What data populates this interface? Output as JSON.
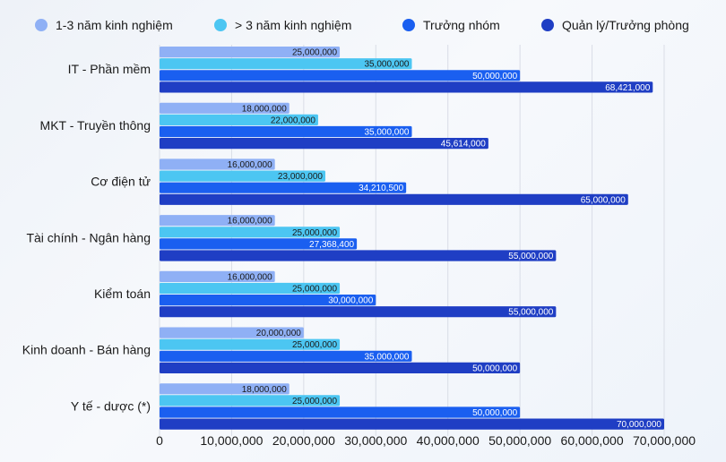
{
  "chart_data": {
    "type": "bar",
    "orientation": "horizontal",
    "categories": [
      "IT - Phần mềm",
      "MKT - Truyền thông",
      "Cơ điện tử",
      "Tài chính - Ngân hàng",
      "Kiểm toán",
      "Kinh doanh - Bán hàng",
      "Y tế - dược (*)"
    ],
    "series": [
      {
        "name": "1-3 năm kinh nghiệm",
        "color": "#8fb0f5",
        "values": [
          25000000,
          18000000,
          16000000,
          16000000,
          16000000,
          20000000,
          18000000
        ],
        "labels": [
          "25,000,000",
          "18,000,000",
          "16,000,000",
          "16,000,000",
          "16,000,000",
          "20,000,000",
          "18,000,000"
        ]
      },
      {
        "name": "> 3 năm kinh nghiệm",
        "color": "#4cc6f2",
        "values": [
          35000000,
          22000000,
          23000000,
          25000000,
          25000000,
          25000000,
          25000000
        ],
        "labels": [
          "35,000,000",
          "22,000,000",
          "23,000,000",
          "25,000,000",
          "25,000,000",
          "25,000,000",
          "25,000,000"
        ]
      },
      {
        "name": "Trưởng nhóm",
        "color": "#1a5ff0",
        "values": [
          50000000,
          35000000,
          34210500,
          27368400,
          30000000,
          35000000,
          50000000
        ],
        "labels": [
          "50,000,000",
          "35,000,000",
          "34,210,500",
          "27,368,400",
          "30,000,000",
          "35,000,000",
          "50,000,000"
        ]
      },
      {
        "name": "Quản lý/Trưởng phòng",
        "color": "#1f3ec4",
        "values": [
          68421000,
          45614000,
          65000000,
          55000000,
          55000000,
          50000000,
          70000000
        ],
        "labels": [
          "68,421,000",
          "45,614,000",
          "65,000,000",
          "55,000,000",
          "55,000,000",
          "50,000,000",
          "70,000,000"
        ]
      }
    ],
    "xlim": [
      0,
      70000000
    ],
    "xticks": [
      0,
      10000000,
      20000000,
      30000000,
      40000000,
      50000000,
      60000000,
      70000000
    ],
    "xtick_labels": [
      "0",
      "10,000,000",
      "20,000,000",
      "30,000,000",
      "40,000,000",
      "50,000,000",
      "60,000,000",
      "70,000,000"
    ],
    "grid": true,
    "legend": "top"
  }
}
